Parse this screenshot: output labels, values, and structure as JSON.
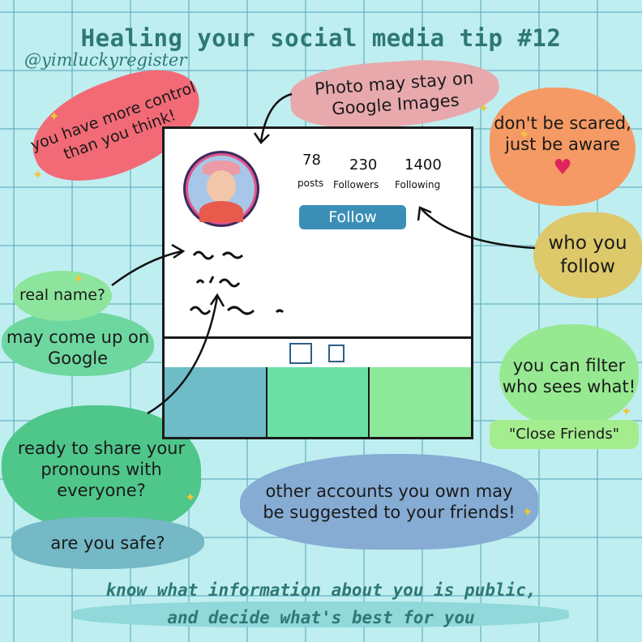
{
  "header": {
    "title": "Healing your social media tip #12",
    "handle": "@yimluckyregister"
  },
  "profile": {
    "posts_count": "78",
    "posts_label": "posts",
    "followers_count": "230",
    "followers_label": "Followers",
    "following_count": "1400",
    "following_label": "Following",
    "follow_button": "Follow",
    "photo_colors": [
      "#6dbcc8",
      "#6be0a6",
      "#8de89a"
    ]
  },
  "callouts": {
    "control": "you have more control than you think!",
    "photo": "Photo may stay on Google Images",
    "scared": "don't be scared, just be aware",
    "who_follow": "who you follow",
    "real_name": "real name?",
    "come_up": "may come up on Google",
    "filter": "you can filter who sees what!",
    "close_friends": "\"Close Friends\"",
    "pronouns": "ready to share your pronouns with everyone?",
    "safe": "are you safe?",
    "accounts": "other accounts you own may be suggested to your friends!"
  },
  "footer": {
    "line1": "know what information about you is public,",
    "line2": "and decide what's best for you"
  },
  "colors": {
    "background": "#bfeef0",
    "title": "#2d7876",
    "follow_button": "#3b8fb6",
    "heart": "#e0245e"
  }
}
